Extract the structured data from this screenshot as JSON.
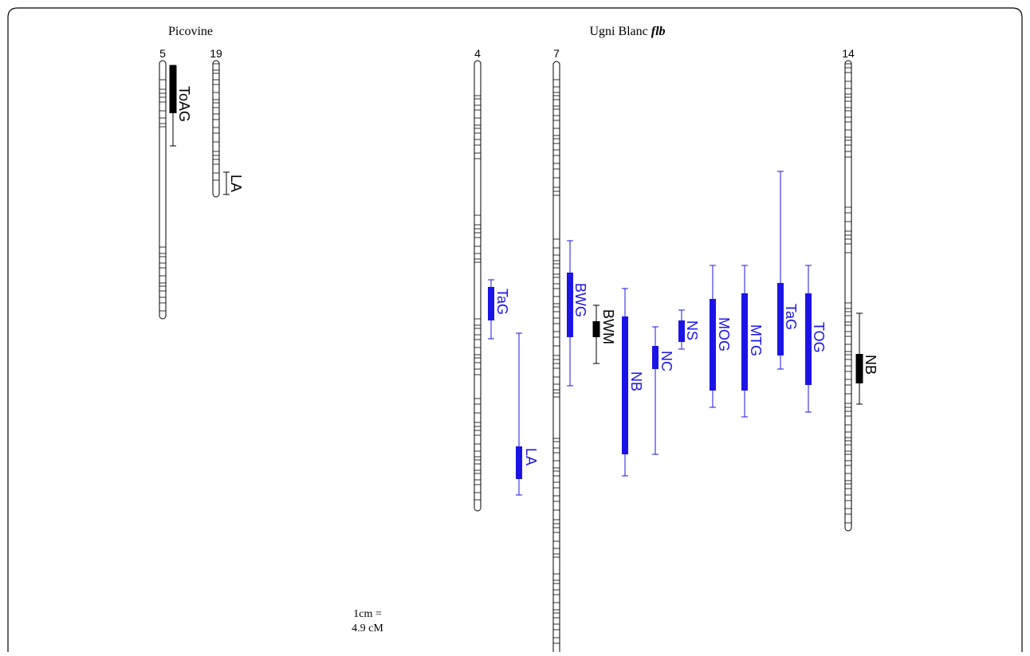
{
  "colors": {
    "blue": "#1c14e6",
    "black": "#000000",
    "outline": "#000000"
  },
  "panels": [
    {
      "title": "Picovine",
      "title_italic": ""
    },
    {
      "title": "Ugni Blanc ",
      "title_italic": "flb"
    }
  ],
  "scale": {
    "line1": "1cm =",
    "line2": "4.9 cM"
  },
  "linkage_groups": [
    {
      "label": "5",
      "panel": 0
    },
    {
      "label": "19",
      "panel": 0
    },
    {
      "label": "4",
      "panel": 1
    },
    {
      "label": "7",
      "panel": 1
    },
    {
      "label": "14",
      "panel": 1
    }
  ],
  "qtls": [
    {
      "label": "ToAG",
      "group": "5",
      "color": "black"
    },
    {
      "label": "LA",
      "group": "19",
      "color": "black"
    },
    {
      "label": "TaG",
      "group": "4",
      "color": "blue"
    },
    {
      "label": "LA",
      "group": "4",
      "color": "blue"
    },
    {
      "label": "BWG",
      "group": "7",
      "color": "blue"
    },
    {
      "label": "BWM",
      "group": "7",
      "color": "black"
    },
    {
      "label": "NB",
      "group": "7",
      "color": "blue"
    },
    {
      "label": "NC",
      "group": "7",
      "color": "blue"
    },
    {
      "label": "NS",
      "group": "7",
      "color": "blue"
    },
    {
      "label": "MOG",
      "group": "7",
      "color": "blue"
    },
    {
      "label": "MTG",
      "group": "7",
      "color": "blue"
    },
    {
      "label": "TaG",
      "group": "7",
      "color": "blue"
    },
    {
      "label": "TOG",
      "group": "7",
      "color": "blue"
    },
    {
      "label": "NB",
      "group": "14",
      "color": "black"
    }
  ]
}
